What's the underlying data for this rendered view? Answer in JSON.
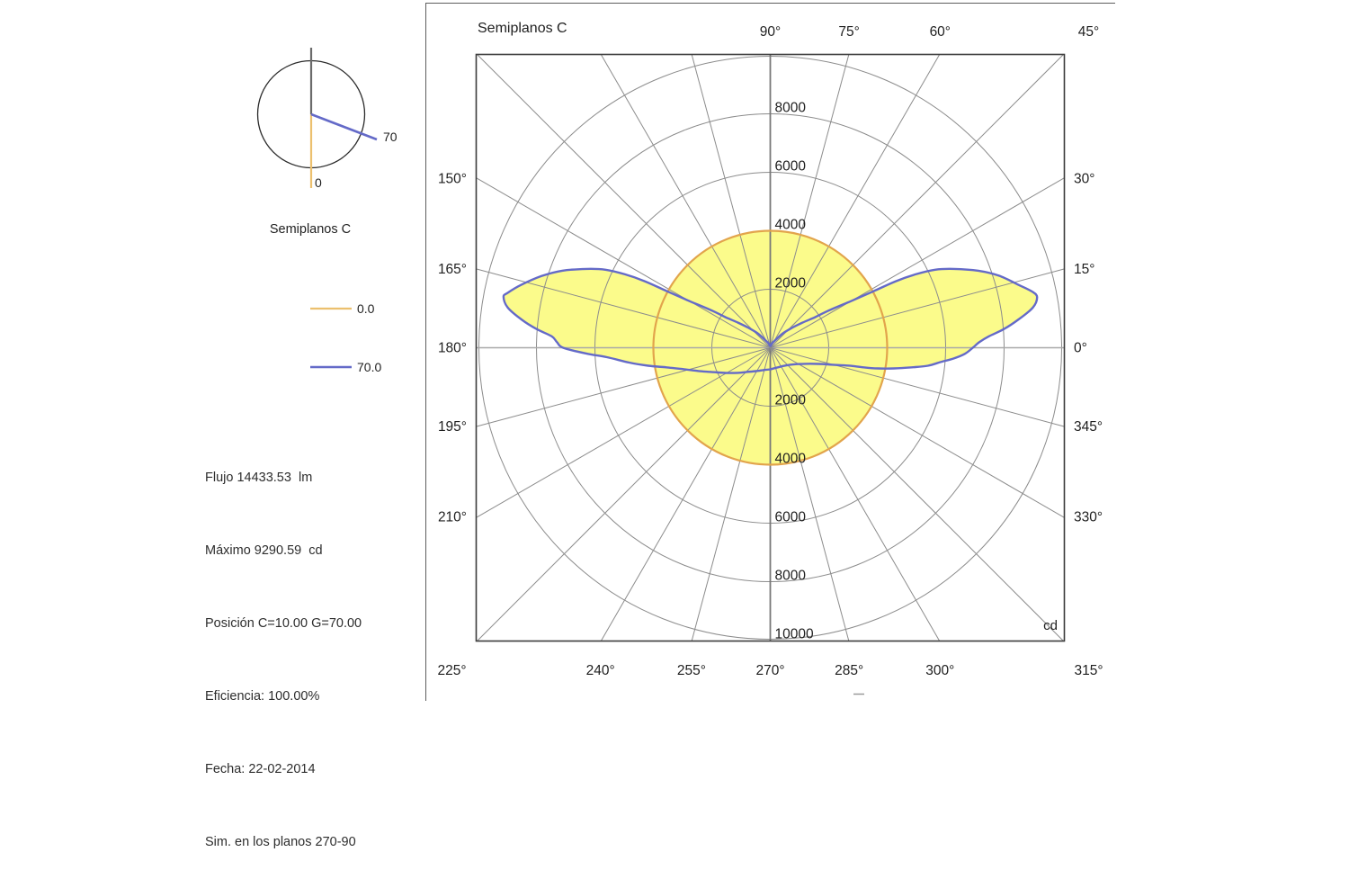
{
  "panel": {
    "mini_diagram": {
      "caption": "Semiplanos C",
      "label_0": "0",
      "label_70": "70",
      "plane0_color": "#ECC06E",
      "plane70_color": "#646AC8"
    },
    "legend": [
      {
        "label": "0.0",
        "color": "#ECC06E"
      },
      {
        "label": "70.0",
        "color": "#646AC8"
      }
    ],
    "info_lines": [
      "Flujo 14433.53  lm",
      "Máximo 9290.59  cd",
      "Posición C=10.00 G=70.00",
      "Eficiencia: 100.00%",
      "Fecha: 22-02-2014",
      "Sim. en los planos 270-90"
    ]
  },
  "chart_data": {
    "type": "polar",
    "title": "Semiplanos C",
    "units": "cd",
    "r_max": 10000,
    "ring_step": 2000,
    "grid_angle_step_deg": 15,
    "legend_position": "left-panel",
    "fill_color": "#FBFB8B",
    "ring_labels_upper": [
      "2000",
      "4000",
      "6000",
      "8000"
    ],
    "ring_labels_lower": [
      "2000",
      "4000",
      "6000",
      "8000",
      "10000"
    ],
    "angle_labels_top": [
      {
        "deg": 90,
        "label": "90°"
      },
      {
        "deg": 75,
        "label": "75°"
      },
      {
        "deg": 60,
        "label": "60°"
      },
      {
        "deg": 45,
        "label": "45°"
      }
    ],
    "angle_labels_left": [
      {
        "deg": 150,
        "label": "150°"
      },
      {
        "deg": 165,
        "label": "165°"
      },
      {
        "deg": 180,
        "label": "180°"
      },
      {
        "deg": 195,
        "label": "195°"
      },
      {
        "deg": 210,
        "label": "210°"
      }
    ],
    "angle_labels_right": [
      {
        "deg": 30,
        "label": "30°"
      },
      {
        "deg": 15,
        "label": "15°"
      },
      {
        "deg": 0,
        "label": "0°"
      },
      {
        "deg": 345,
        "label": "345°"
      },
      {
        "deg": 330,
        "label": "330°"
      }
    ],
    "angle_labels_bottom": [
      {
        "deg": 225,
        "label": "225°"
      },
      {
        "deg": 240,
        "label": "240°"
      },
      {
        "deg": 255,
        "label": "255°"
      },
      {
        "deg": 270,
        "label": "270°"
      },
      {
        "deg": 285,
        "label": "285°"
      },
      {
        "deg": 300,
        "label": "300°"
      },
      {
        "deg": 315,
        "label": "315°"
      }
    ],
    "series": [
      {
        "name": "0.0",
        "stroke_color": "#E2A44C",
        "shape": "circle",
        "value_cd": 4000
      },
      {
        "name": "70.0",
        "stroke_color": "#646AC8",
        "max_cd": 9290.59,
        "points_deg_cd": [
          [
            0,
            6930
          ],
          [
            1.5,
            7150
          ],
          [
            3,
            7490
          ],
          [
            4.5,
            8000
          ],
          [
            6.5,
            8550
          ],
          [
            8.7,
            9090
          ],
          [
            10.7,
            9290
          ],
          [
            12,
            9180
          ],
          [
            14,
            8800
          ],
          [
            17.5,
            8200
          ],
          [
            20.3,
            7590
          ],
          [
            23.2,
            6840
          ],
          [
            25.3,
            6240
          ],
          [
            26.8,
            5570
          ],
          [
            27.9,
            4860
          ],
          [
            28.7,
            4020
          ],
          [
            30,
            3190
          ],
          [
            32.6,
            2330
          ],
          [
            34.2,
            1860
          ],
          [
            37.9,
            1400
          ],
          [
            42.5,
            1000
          ],
          [
            48.8,
            650
          ],
          [
            56,
            330
          ],
          [
            70,
            150
          ],
          [
            90,
            60
          ],
          [
            110,
            150
          ],
          [
            124,
            330
          ],
          [
            131.2,
            650
          ],
          [
            137.5,
            1000
          ],
          [
            142.1,
            1400
          ],
          [
            145.8,
            1860
          ],
          [
            147.4,
            2330
          ],
          [
            150,
            3190
          ],
          [
            151.3,
            4020
          ],
          [
            152.1,
            4860
          ],
          [
            153.2,
            5570
          ],
          [
            154.7,
            6240
          ],
          [
            156.8,
            6840
          ],
          [
            159.7,
            7590
          ],
          [
            162.6,
            8200
          ],
          [
            165.9,
            8800
          ],
          [
            168.2,
            9180
          ],
          [
            169.2,
            9290
          ],
          [
            171.3,
            9090
          ],
          [
            173.6,
            8550
          ],
          [
            175.5,
            8000
          ],
          [
            177,
            7490
          ],
          [
            178.5,
            7300
          ],
          [
            180,
            7090
          ],
          [
            181.8,
            6300
          ],
          [
            183.3,
            5600
          ],
          [
            186,
            4850
          ],
          [
            188.4,
            4220
          ],
          [
            190.7,
            3620
          ],
          [
            194,
            3040
          ],
          [
            198,
            2580
          ],
          [
            202.2,
            2190
          ],
          [
            209.3,
            1760
          ],
          [
            217.9,
            1400
          ],
          [
            226.1,
            1150
          ],
          [
            238.4,
            940
          ],
          [
            252.3,
            805
          ],
          [
            270,
            737
          ],
          [
            279.9,
            715
          ],
          [
            299.7,
            740
          ],
          [
            319.2,
            890
          ],
          [
            334.7,
            1290
          ],
          [
            341.6,
            1750
          ],
          [
            344.8,
            2220
          ],
          [
            347.2,
            2770
          ],
          [
            348.1,
            3260
          ],
          [
            349.1,
            3750
          ],
          [
            350.5,
            4290
          ],
          [
            352.1,
            4890
          ],
          [
            353.5,
            5430
          ],
          [
            355.2,
            5850
          ],
          [
            356.6,
            6270
          ],
          [
            358.2,
            6660
          ]
        ]
      }
    ]
  }
}
